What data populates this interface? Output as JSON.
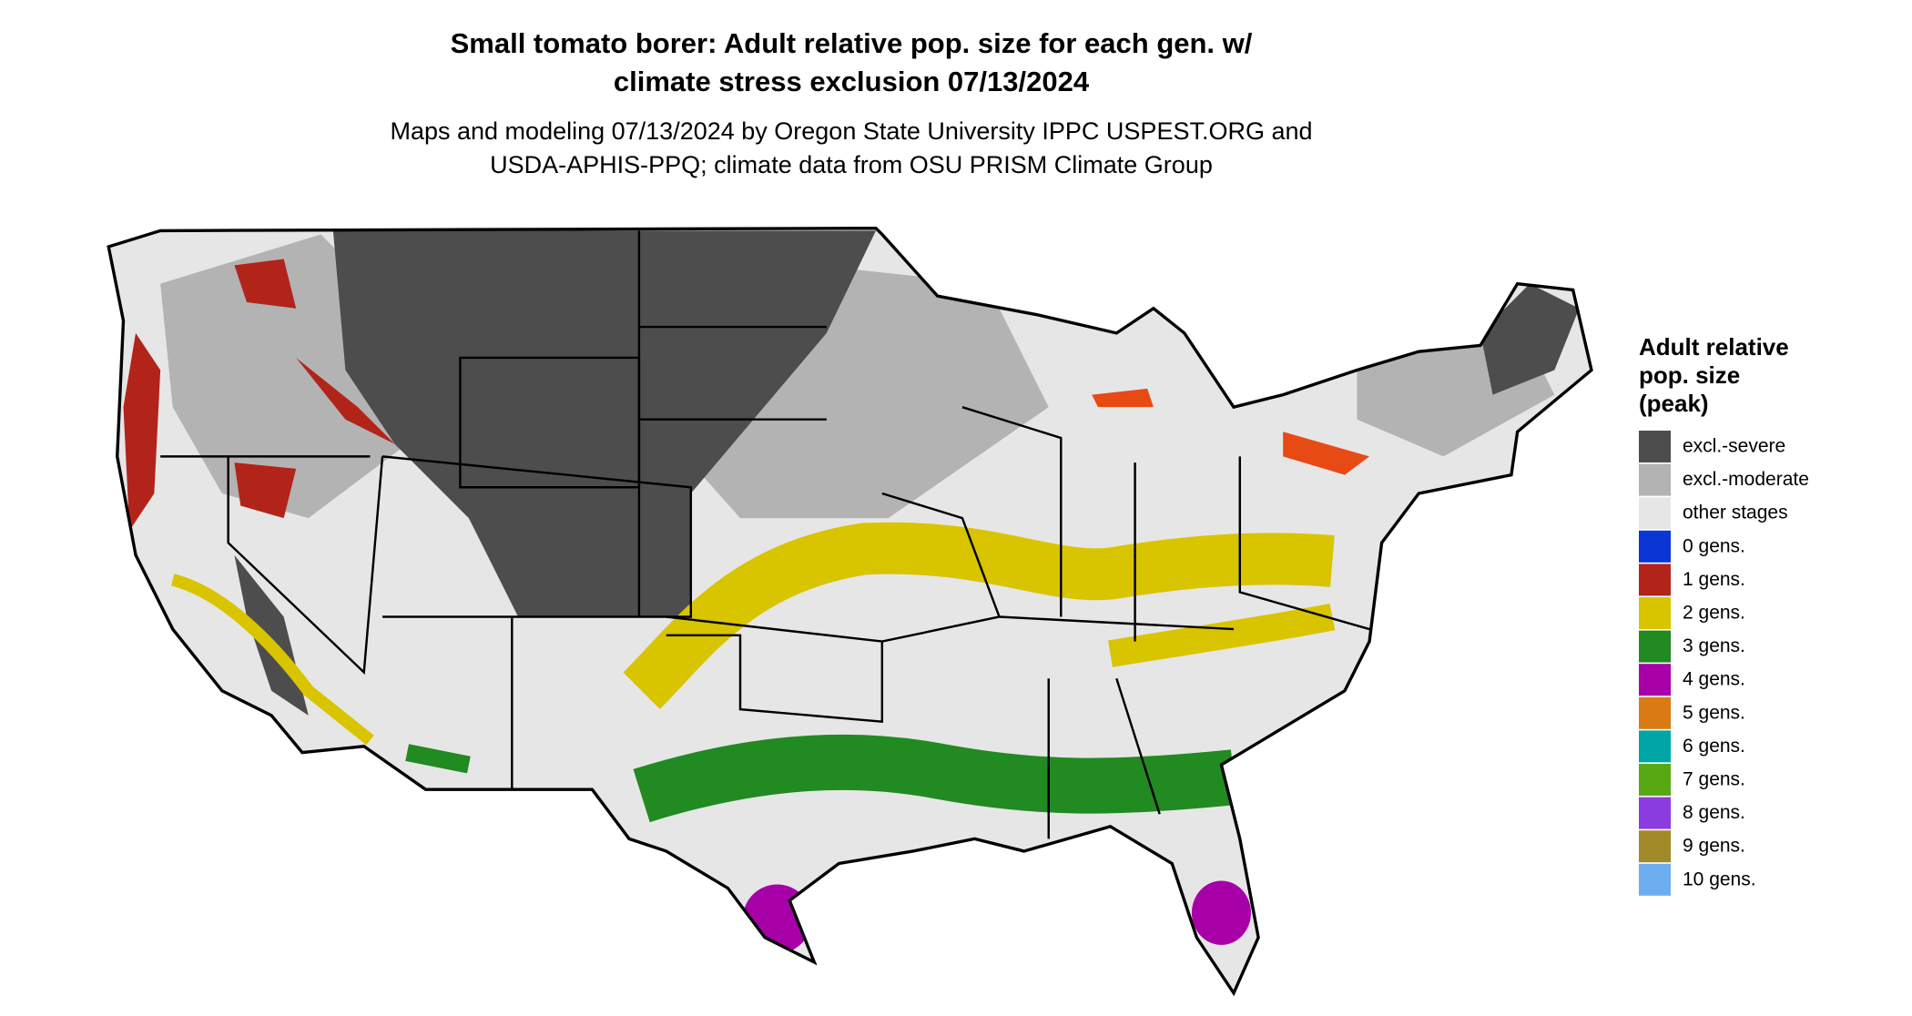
{
  "header": {
    "title": [
      "Small tomato borer: Adult relative pop. size for each gen. w/",
      "climate stress exclusion 07/13/2024"
    ],
    "subtitle": [
      "Maps and modeling 07/13/2024 by Oregon State University IPPC USPEST.ORG and",
      "USDA-APHIS-PPQ; climate data from OSU PRISM Climate Group"
    ]
  },
  "legend": {
    "title": [
      "Adult relative",
      "pop. size",
      "(peak)"
    ],
    "items": [
      {
        "label": "excl.-severe",
        "color": "#4d4d4d"
      },
      {
        "label": "excl.-moderate",
        "color": "#b3b3b3"
      },
      {
        "label": "other stages",
        "color": "#e6e6e6"
      },
      {
        "label": "0 gens.",
        "color": "#0a36d6"
      },
      {
        "label": "1 gens.",
        "color": "#b2241a"
      },
      {
        "label": "2 gens.",
        "color": "#d9c400"
      },
      {
        "label": "3 gens.",
        "color": "#218a21"
      },
      {
        "label": "4 gens.",
        "color": "#a800a8"
      },
      {
        "label": "5 gens.",
        "color": "#d97a14"
      },
      {
        "label": "6 gens.",
        "color": "#00a5a5"
      },
      {
        "label": "7 gens.",
        "color": "#58a814"
      },
      {
        "label": "8 gens.",
        "color": "#8a3ce0"
      },
      {
        "label": "9 gens.",
        "color": "#a08a28"
      },
      {
        "label": "10 gens.",
        "color": "#6eaef0"
      }
    ]
  }
}
